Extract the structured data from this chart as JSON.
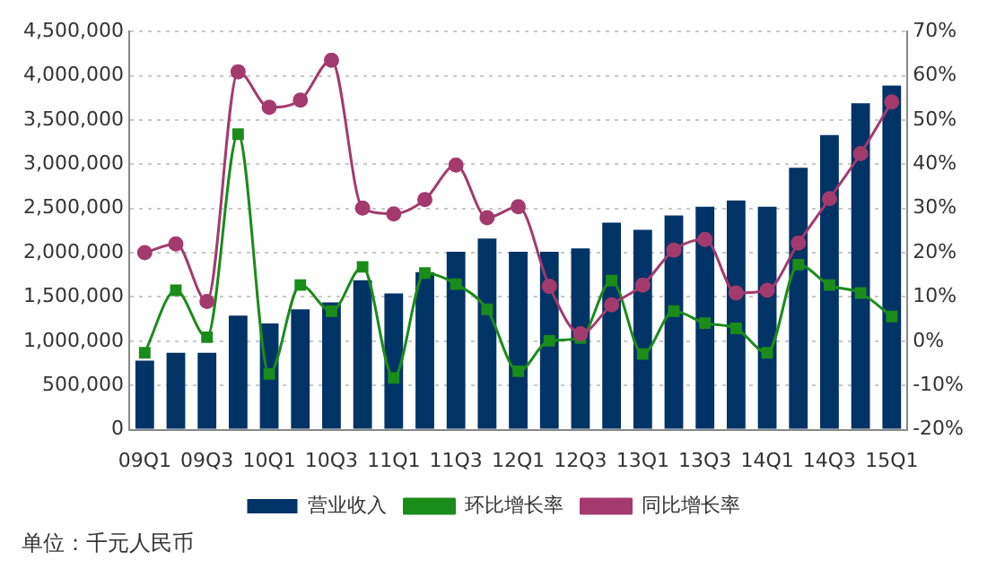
{
  "chart_data": {
    "type": "bar",
    "categories": [
      "09Q1",
      null,
      "09Q3",
      null,
      "10Q1",
      null,
      "10Q3",
      null,
      "11Q1",
      null,
      "11Q3",
      null,
      "12Q1",
      null,
      "12Q3",
      null,
      "13Q1",
      null,
      "13Q3",
      null,
      "14Q1",
      null,
      "14Q3",
      null,
      "15Q1"
    ],
    "series": [
      {
        "name": "营业收入",
        "color": "#003366",
        "values": [
          780000,
          870000,
          870000,
          1290000,
          1200000,
          1360000,
          1440000,
          1690000,
          1540000,
          1780000,
          2010000,
          2160000,
          2010000,
          2010000,
          2050000,
          2340000,
          2260000,
          2420000,
          2520000,
          2590000,
          2520000,
          2960000,
          3330000,
          3690000,
          3890000
        ]
      },
      {
        "name": "环比增长率",
        "type": "line",
        "axis": "y2",
        "marker": "square",
        "color": "#1a8c1a",
        "values": [
          -2.6,
          11.5,
          0.9,
          46.8,
          -7.4,
          12.7,
          6.8,
          16.8,
          -8.3,
          15.4,
          12.9,
          7.2,
          -6.8,
          0.1,
          0.7,
          13.7,
          -2.9,
          6.8,
          4.1,
          2.9,
          -2.6,
          17.3,
          12.7,
          10.9,
          5.6
        ]
      },
      {
        "name": "同比增长率",
        "type": "line",
        "axis": "y2",
        "marker": "circle",
        "color": "#a33a6e",
        "values": [
          20.0,
          22.0,
          9.0,
          60.9,
          52.9,
          54.5,
          63.5,
          30.1,
          28.8,
          32.0,
          39.8,
          27.9,
          30.4,
          12.4,
          1.7,
          8.2,
          12.7,
          20.6,
          23.0,
          10.9,
          11.5,
          22.2,
          32.2,
          42.4,
          54.1
        ]
      }
    ],
    "ylim": [
      0,
      4500000
    ],
    "yticks": [
      0,
      {
        "value": 500000,
        "label": "500,000"
      },
      {
        "value": 1000000,
        "label": "1,000,000"
      },
      {
        "value": 1500000,
        "label": "1,500,000"
      },
      {
        "value": 2000000,
        "label": "2,000,000"
      },
      {
        "value": 2500000,
        "label": "2,500,000"
      },
      {
        "value": 3000000,
        "label": "3,000,000"
      },
      {
        "value": 3500000,
        "label": "3,500,000"
      },
      {
        "value": 4000000,
        "label": "4,000,000"
      },
      {
        "value": 4500000,
        "label": "4,500,000"
      }
    ],
    "y2lim": [
      -20,
      70
    ],
    "y2ticks": [
      {
        "value": -20,
        "label": "-20%"
      },
      {
        "value": -10,
        "label": "-10%"
      },
      {
        "value": 0,
        "label": "0%"
      },
      {
        "value": 10,
        "label": "10%"
      },
      {
        "value": 20,
        "label": "20%"
      },
      {
        "value": 30,
        "label": "30%"
      },
      {
        "value": 40,
        "label": "40%"
      },
      {
        "value": 50,
        "label": "50%"
      },
      {
        "value": 60,
        "label": "60%"
      },
      {
        "value": 70,
        "label": "70%"
      }
    ],
    "grid": "y",
    "legend": "bottom",
    "annotations": [
      "单位：千元人民币"
    ]
  }
}
